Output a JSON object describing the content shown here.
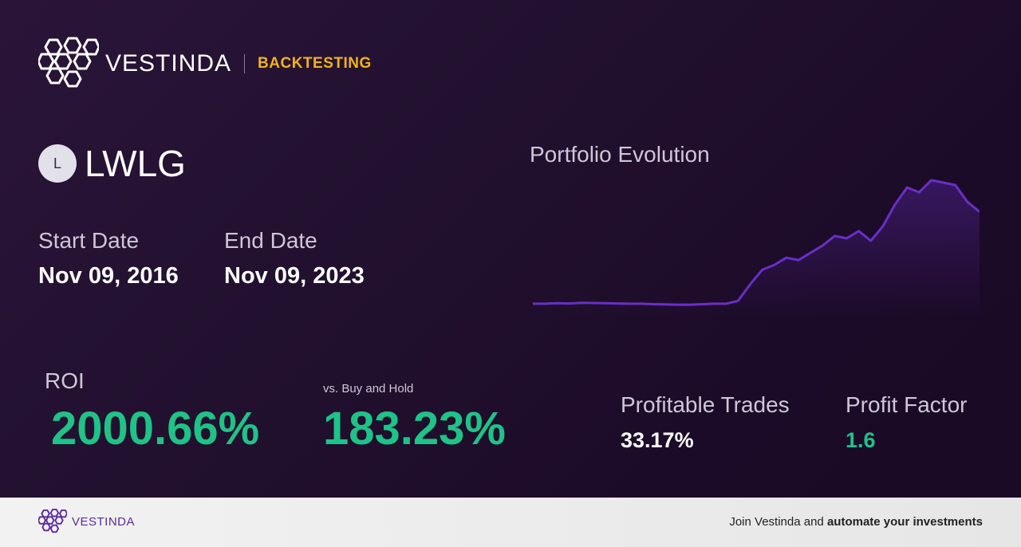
{
  "header": {
    "brand": "VESTINDA",
    "section": "BACKTESTING"
  },
  "ticker": {
    "badge": "L",
    "symbol": "LWLG"
  },
  "dates": {
    "start_label": "Start Date",
    "start_value": "Nov 09, 2016",
    "end_label": "End Date",
    "end_value": "Nov 09, 2023"
  },
  "roi": {
    "label": "ROI",
    "value": "2000.66%"
  },
  "buy_hold": {
    "label": "vs. Buy and Hold",
    "value": "183.23%"
  },
  "metrics": {
    "profitable_trades_label": "Profitable Trades",
    "profitable_trades_value": "33.17%",
    "profit_factor_label": "Profit Factor",
    "profit_factor_value": "1.6"
  },
  "chart_title": "Portfolio Evolution",
  "chart_data": {
    "type": "area",
    "title": "Portfolio Evolution",
    "xlabel": "",
    "ylabel": "",
    "x_range": [
      "Nov 09, 2016",
      "Nov 09, 2023"
    ],
    "grid": false,
    "series": [
      {
        "values": [
          1.0,
          1.0,
          1.1,
          1.05,
          1.2,
          1.15,
          1.1,
          1.05,
          1.0,
          1.0,
          0.9,
          0.85,
          0.8,
          0.8,
          0.9,
          1.0,
          1.0,
          1.6,
          5.0,
          8.0,
          9.0,
          10.5,
          10.0,
          11.5,
          13.0,
          15.0,
          14.5,
          16.0,
          14.0,
          17.0,
          21.5,
          25.0,
          24.0,
          26.5,
          26.0,
          25.5,
          22.0,
          20.0
        ],
        "color": "#6a2ec8"
      }
    ]
  },
  "footer": {
    "brand": "VESTINDA",
    "cta_prefix": "Join Vestinda and ",
    "cta_bold": "automate your investments"
  },
  "colors": {
    "accent_green": "#1fc287",
    "accent_gold": "#f2b21a",
    "line_purple": "#6a2ec8",
    "footer_brand": "#5b2a9e"
  }
}
